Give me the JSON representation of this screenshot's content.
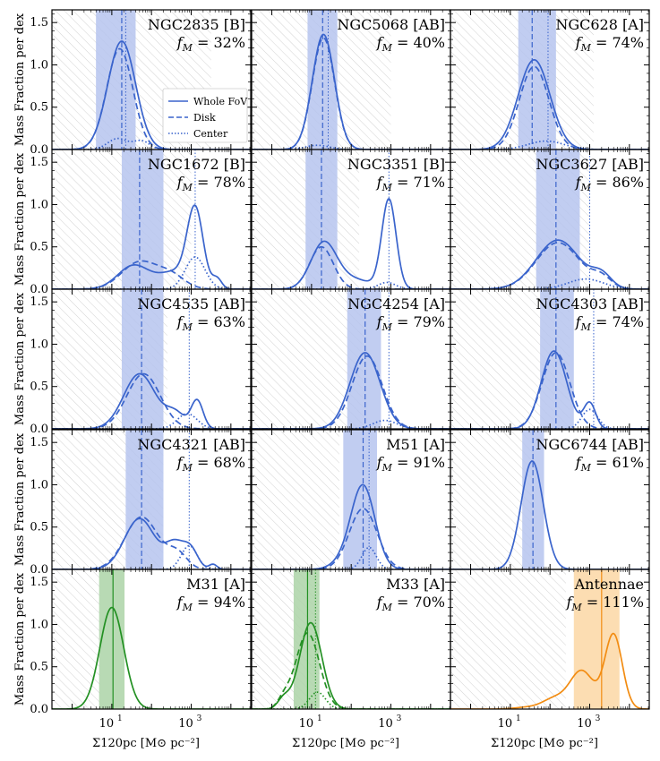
{
  "figure": {
    "ylabel": "Mass Fraction per dex",
    "xlabel": "Σ120pc [M⊙ pc⁻²]",
    "y_ticks": [
      "0.0",
      "0.5",
      "1.0",
      "1.5"
    ],
    "x_ticks": [
      "10",
      "10"
    ],
    "x_tick_exps": [
      "1",
      "3"
    ],
    "legend": [
      "Whole FoV",
      "Disk",
      "Center"
    ]
  },
  "colors": {
    "blue": "#3a64cc",
    "green": "#239023",
    "orange": "#f28c12",
    "blue_band": "#b6c4ee",
    "green_band": "#acd4a7",
    "orange_band": "#fcd7a4",
    "hatch": "#b3b3b3"
  },
  "chart_data": {
    "type": "line",
    "x_scale": "log",
    "xlim": [
      0.31,
      31622
    ],
    "ylim": [
      0,
      1.65
    ],
    "panels": [
      {
        "title": "NGC2835 [B]",
        "fm_label": "f",
        "fm_sub": "M",
        "fm_value": " = 32%",
        "color": "blue",
        "hatch_max": 3.5,
        "band": [
          0.6,
          1.6
        ],
        "median": 1.25,
        "center_line": 1.35,
        "whole": [
          {
            "m": 1.25,
            "s": 0.35,
            "a": 1.28
          }
        ],
        "disk": [
          {
            "m": 1.2,
            "s": 0.33,
            "a": 1.19
          }
        ],
        "center": [
          {
            "m": 1.15,
            "s": 0.25,
            "a": 0.13
          },
          {
            "m": 1.75,
            "s": 0.2,
            "a": 0.1
          }
        ]
      },
      {
        "title": "NGC5068 [AB]",
        "fm_label": "f",
        "fm_sub": "M",
        "fm_value": " = 40%",
        "color": "blue",
        "hatch_max": 3.0,
        "band": [
          0.9,
          1.65
        ],
        "median": 1.28,
        "center_line": 1.42,
        "whole": [
          {
            "m": 1.3,
            "s": 0.28,
            "a": 1.36
          }
        ],
        "disk": [
          {
            "m": 1.3,
            "s": 0.28,
            "a": 1.32
          }
        ],
        "center": [
          {
            "m": 1.15,
            "s": 0.3,
            "a": 0.05
          }
        ]
      },
      {
        "title": "NGC628 [A]",
        "fm_label": "f",
        "fm_sub": "M",
        "fm_value": " = 74%",
        "color": "blue",
        "hatch_max": 3.1,
        "band": [
          1.2,
          2.15
        ],
        "median": 1.55,
        "center_line": 1.95,
        "whole": [
          {
            "m": 1.6,
            "s": 0.4,
            "a": 1.06
          }
        ],
        "disk": [
          {
            "m": 1.6,
            "s": 0.37,
            "a": 0.98
          }
        ],
        "center": [
          {
            "m": 1.9,
            "s": 0.45,
            "a": 0.1
          }
        ]
      },
      {
        "title": "NGC1672 [B]",
        "fm_label": "f",
        "fm_sub": "M",
        "fm_value": " = 78%",
        "color": "blue",
        "hatch_max": 3.0,
        "band": [
          1.25,
          2.3
        ],
        "median": 1.7,
        "center_line": 3.1,
        "whole": [
          {
            "m": 1.55,
            "s": 0.4,
            "a": 0.28
          },
          {
            "m": 2.6,
            "s": 0.4,
            "a": 0.2
          },
          {
            "m": 3.1,
            "s": 0.2,
            "a": 0.9
          },
          {
            "m": 3.65,
            "s": 0.12,
            "a": 0.12
          }
        ],
        "disk": [
          {
            "m": 1.7,
            "s": 0.45,
            "a": 0.32
          },
          {
            "m": 2.5,
            "s": 0.35,
            "a": 0.15
          }
        ],
        "center": [
          {
            "m": 3.1,
            "s": 0.25,
            "a": 0.38
          }
        ]
      },
      {
        "title": "NGC3351 [B]",
        "fm_label": "f",
        "fm_sub": "M",
        "fm_value": " = 71%",
        "color": "blue",
        "hatch_max": 2.2,
        "band": [
          0.85,
          1.65
        ],
        "median": 1.25,
        "center_line": 2.95,
        "whole": [
          {
            "m": 1.3,
            "s": 0.32,
            "a": 0.52
          },
          {
            "m": 2.0,
            "s": 0.5,
            "a": 0.12
          },
          {
            "m": 2.95,
            "s": 0.18,
            "a": 1.05
          }
        ],
        "disk": [
          {
            "m": 1.25,
            "s": 0.3,
            "a": 0.5
          }
        ],
        "center": [
          {
            "m": 2.9,
            "s": 0.22,
            "a": 0.08
          }
        ]
      },
      {
        "title": "NGC3627 [AB]",
        "fm_label": "f",
        "fm_sub": "M",
        "fm_value": " = 86%",
        "color": "blue",
        "hatch_max": 3.0,
        "band": [
          1.65,
          2.75
        ],
        "median": 2.15,
        "center_line": 3.0,
        "whole": [
          {
            "m": 2.2,
            "s": 0.55,
            "a": 0.58
          },
          {
            "m": 3.3,
            "s": 0.25,
            "a": 0.15
          }
        ],
        "disk": [
          {
            "m": 2.2,
            "s": 0.55,
            "a": 0.55
          },
          {
            "m": 3.3,
            "s": 0.25,
            "a": 0.12
          }
        ],
        "center": [
          {
            "m": 2.9,
            "s": 0.45,
            "a": 0.12
          }
        ]
      },
      {
        "title": "NGC4535 [AB]",
        "fm_label": "f",
        "fm_sub": "M",
        "fm_value": " = 63%",
        "color": "blue",
        "hatch_max": 2.4,
        "band": [
          1.25,
          2.3
        ],
        "median": 1.75,
        "center_line": 2.95,
        "whole": [
          {
            "m": 1.7,
            "s": 0.4,
            "a": 0.65
          },
          {
            "m": 2.6,
            "s": 0.25,
            "a": 0.18
          },
          {
            "m": 3.15,
            "s": 0.15,
            "a": 0.33
          }
        ],
        "disk": [
          {
            "m": 1.8,
            "s": 0.42,
            "a": 0.65
          }
        ],
        "center": [
          {
            "m": 2.9,
            "s": 0.25,
            "a": 0.18
          }
        ]
      },
      {
        "title": "NGC4254 [A]",
        "fm_label": "f",
        "fm_sub": "M",
        "fm_value": " = 79%",
        "color": "blue",
        "hatch_max": 2.35,
        "band": [
          1.9,
          2.75
        ],
        "median": 2.35,
        "center_line": 2.95,
        "whole": [
          {
            "m": 2.35,
            "s": 0.38,
            "a": 0.9
          }
        ],
        "disk": [
          {
            "m": 2.4,
            "s": 0.38,
            "a": 0.86
          }
        ],
        "center": [
          {
            "m": 2.85,
            "s": 0.3,
            "a": 0.1
          }
        ]
      },
      {
        "title": "NGC4303 [AB]",
        "fm_label": "f",
        "fm_sub": "M",
        "fm_value": " = 74%",
        "color": "blue",
        "hatch_max": 2.5,
        "band": [
          1.75,
          2.6
        ],
        "median": 2.15,
        "center_line": 3.1,
        "whole": [
          {
            "m": 2.1,
            "s": 0.32,
            "a": 0.92
          },
          {
            "m": 3.0,
            "s": 0.15,
            "a": 0.3
          }
        ],
        "disk": [
          {
            "m": 2.15,
            "s": 0.35,
            "a": 0.9
          }
        ],
        "center": [
          {
            "m": 3.0,
            "s": 0.2,
            "a": 0.23
          }
        ]
      },
      {
        "title": "NGC4321 [AB]",
        "fm_label": "f",
        "fm_sub": "M",
        "fm_value": " = 68%",
        "color": "blue",
        "hatch_max": 2.3,
        "band": [
          1.35,
          2.3
        ],
        "median": 1.75,
        "center_line": 2.95,
        "whole": [
          {
            "m": 1.7,
            "s": 0.38,
            "a": 0.6
          },
          {
            "m": 2.6,
            "s": 0.25,
            "a": 0.3
          },
          {
            "m": 3.0,
            "s": 0.18,
            "a": 0.2
          },
          {
            "m": 3.55,
            "s": 0.1,
            "a": 0.06
          }
        ],
        "disk": [
          {
            "m": 1.75,
            "s": 0.42,
            "a": 0.62
          },
          {
            "m": 2.65,
            "s": 0.25,
            "a": 0.18
          }
        ],
        "center": [
          {
            "m": 2.95,
            "s": 0.2,
            "a": 0.28
          }
        ]
      },
      {
        "title": "M51 [A]",
        "fm_label": "f",
        "fm_sub": "M",
        "fm_value": " = 91%",
        "color": "blue",
        "hatch_max": 1.7,
        "band": [
          1.8,
          2.65
        ],
        "median": 2.3,
        "center_line": 2.45,
        "whole": [
          {
            "m": 2.3,
            "s": 0.3,
            "a": 0.98
          },
          {
            "m": 1.8,
            "s": 0.3,
            "a": 0.08
          }
        ],
        "disk": [
          {
            "m": 2.3,
            "s": 0.35,
            "a": 0.72
          }
        ],
        "center": [
          {
            "m": 2.45,
            "s": 0.18,
            "a": 0.26
          }
        ]
      },
      {
        "title": "NGC6744 [AB]",
        "fm_label": "f",
        "fm_sub": "M",
        "fm_value": " = 61%",
        "color": "blue",
        "hatch_max": 1.6,
        "band": [
          1.3,
          1.85
        ],
        "median": 1.57,
        "center_line": null,
        "whole": [
          {
            "m": 1.55,
            "s": 0.28,
            "a": 1.28
          }
        ],
        "disk": [],
        "center": []
      },
      {
        "title": "M31 [A]",
        "fm_label": "f",
        "fm_sub": "M",
        "fm_value": " = 94%",
        "color": "green",
        "hatch_max": 0.7,
        "band": [
          0.68,
          1.32
        ],
        "median": 1.03,
        "center_line": null,
        "whole": [
          {
            "m": 1.0,
            "s": 0.3,
            "a": 1.2
          }
        ],
        "disk": [],
        "center": []
      },
      {
        "title": "M33 [A]",
        "fm_label": "f",
        "fm_sub": "M",
        "fm_value": " = 70%",
        "color": "green",
        "hatch_max": 1.2,
        "band": [
          0.55,
          1.2
        ],
        "median": 0.9,
        "center_line": 1.1,
        "whole": [
          {
            "m": 0.98,
            "s": 0.28,
            "a": 1.02
          },
          {
            "m": 0.3,
            "s": 0.15,
            "a": 0.12
          }
        ],
        "disk": [
          {
            "m": 0.9,
            "s": 0.3,
            "a": 0.9
          },
          {
            "m": 0.3,
            "s": 0.15,
            "a": 0.1
          }
        ],
        "center": [
          {
            "m": 1.15,
            "s": 0.2,
            "a": 0.2
          }
        ]
      },
      {
        "title": "Antennae",
        "fm_label": "f",
        "fm_sub": "M",
        "fm_value": " = 111%",
        "color": "orange",
        "hatch_max": 2.4,
        "band": [
          2.6,
          3.75
        ],
        "median": 3.3,
        "center_line": null,
        "whole": [
          {
            "m": 2.8,
            "s": 0.3,
            "a": 0.45
          },
          {
            "m": 3.6,
            "s": 0.22,
            "a": 0.88
          },
          {
            "m": 2.1,
            "s": 0.3,
            "a": 0.12
          },
          {
            "m": 1.4,
            "s": 0.3,
            "a": 0.02
          }
        ],
        "disk": [],
        "center": []
      }
    ]
  }
}
